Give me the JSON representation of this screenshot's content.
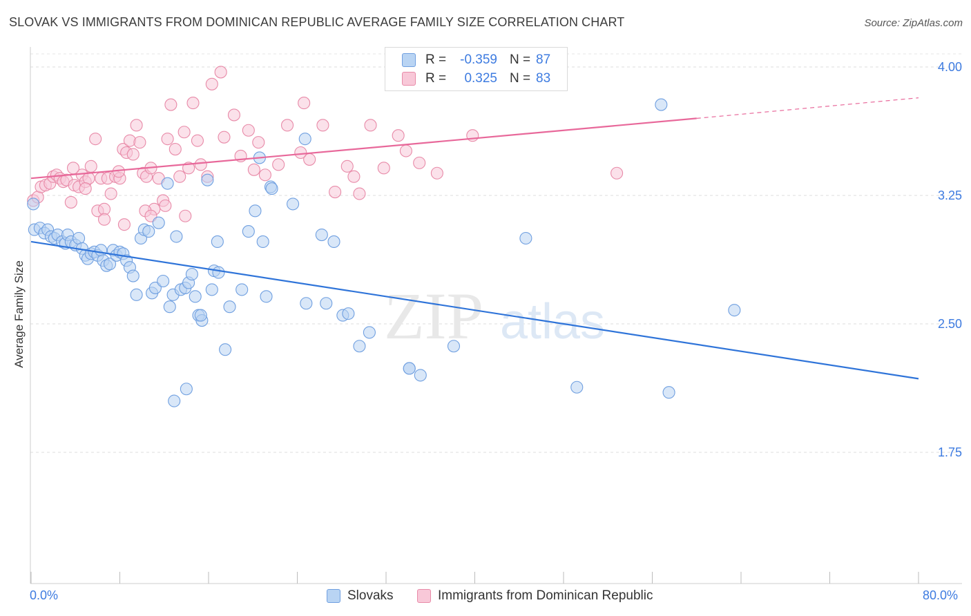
{
  "title": "SLOVAK VS IMMIGRANTS FROM DOMINICAN REPUBLIC AVERAGE FAMILY SIZE CORRELATION CHART",
  "source": "Source: ZipAtlas.com",
  "watermark": {
    "zip": "ZIP",
    "atlas": "atlas"
  },
  "legend": {
    "r_label": "R =",
    "n_label": "N =",
    "series": [
      {
        "r": "-0.359",
        "n": "87"
      },
      {
        "r": "0.325",
        "n": "83"
      }
    ]
  },
  "bottom_legend": {
    "series_a": "Slovaks",
    "series_b": "Immigrants from Dominican Republic"
  },
  "x_labels": {
    "min": "0.0%",
    "max": "80.0%"
  },
  "colors": {
    "blue": "#6f9fe0",
    "blue_fill": "#b9d4f3",
    "pink": "#e88aa8",
    "pink_fill": "#f8c8d8",
    "blue_line": "#2f74d9",
    "pink_line": "#e8689a",
    "tick_text": "#3d7be0"
  },
  "chart_data": {
    "type": "scatter",
    "title": "SLOVAK VS IMMIGRANTS FROM DOMINICAN REPUBLIC AVERAGE FAMILY SIZE CORRELATION CHART",
    "xlabel": "",
    "ylabel": "Average Family Size",
    "xlim": [
      0,
      80
    ],
    "ylim": [
      1.0,
      4.15
    ],
    "y_ticks": [
      1.75,
      2.5,
      3.25,
      4.0
    ],
    "y_tick_labels": [
      "1.75",
      "2.50",
      "3.25",
      "4.00"
    ],
    "x_ticks": [
      0,
      8,
      16,
      24,
      32,
      40,
      48,
      56,
      64,
      72,
      80
    ],
    "series": [
      {
        "name": "Slovaks",
        "r": -0.359,
        "n": 87,
        "trend": {
          "x0": 0,
          "y0": 2.98,
          "x1": 80,
          "y1": 2.18
        },
        "points": [
          [
            0.2,
            3.2
          ],
          [
            0.3,
            3.05
          ],
          [
            0.8,
            3.06
          ],
          [
            1.2,
            3.03
          ],
          [
            1.5,
            3.05
          ],
          [
            1.8,
            3.01
          ],
          [
            2.1,
            3.0
          ],
          [
            2.4,
            3.02
          ],
          [
            2.8,
            2.98
          ],
          [
            3.1,
            2.97
          ],
          [
            3.3,
            3.02
          ],
          [
            3.6,
            2.98
          ],
          [
            4.0,
            2.96
          ],
          [
            4.3,
            3.0
          ],
          [
            4.6,
            2.94
          ],
          [
            4.9,
            2.9
          ],
          [
            5.1,
            2.88
          ],
          [
            5.4,
            2.91
          ],
          [
            5.7,
            2.92
          ],
          [
            6.0,
            2.9
          ],
          [
            6.3,
            2.93
          ],
          [
            6.5,
            2.87
          ],
          [
            6.8,
            2.84
          ],
          [
            7.1,
            2.85
          ],
          [
            7.4,
            2.93
          ],
          [
            7.7,
            2.9
          ],
          [
            8.0,
            2.92
          ],
          [
            8.3,
            2.91
          ],
          [
            8.6,
            2.87
          ],
          [
            8.9,
            2.83
          ],
          [
            9.2,
            2.78
          ],
          [
            9.5,
            2.67
          ],
          [
            9.9,
            3.0
          ],
          [
            10.2,
            3.05
          ],
          [
            10.6,
            3.04
          ],
          [
            10.9,
            2.68
          ],
          [
            11.2,
            2.71
          ],
          [
            11.5,
            3.09
          ],
          [
            11.9,
            2.75
          ],
          [
            12.3,
            3.32
          ],
          [
            12.5,
            2.6
          ],
          [
            12.8,
            2.67
          ],
          [
            13.1,
            3.01
          ],
          [
            13.5,
            2.7
          ],
          [
            13.9,
            2.71
          ],
          [
            14.2,
            2.74
          ],
          [
            14.5,
            2.79
          ],
          [
            14.8,
            2.66
          ],
          [
            15.1,
            2.55
          ],
          [
            15.4,
            2.52
          ],
          [
            15.9,
            3.34
          ],
          [
            16.3,
            2.7
          ],
          [
            16.5,
            2.81
          ],
          [
            16.8,
            2.98
          ],
          [
            17.9,
            2.6
          ],
          [
            19.0,
            2.7
          ],
          [
            19.6,
            3.04
          ],
          [
            20.2,
            3.16
          ],
          [
            20.6,
            3.47
          ],
          [
            20.9,
            2.98
          ],
          [
            21.2,
            2.66
          ],
          [
            21.6,
            3.3
          ],
          [
            21.7,
            3.29
          ],
          [
            23.6,
            3.2
          ],
          [
            24.7,
            3.58
          ],
          [
            26.2,
            3.02
          ],
          [
            27.3,
            2.98
          ],
          [
            28.1,
            2.55
          ],
          [
            29.6,
            2.37
          ],
          [
            30.5,
            2.45
          ],
          [
            34.1,
            2.24
          ],
          [
            34.1,
            2.24
          ],
          [
            35.1,
            2.2
          ],
          [
            26.6,
            2.62
          ],
          [
            16.9,
            2.8
          ],
          [
            15.3,
            2.55
          ],
          [
            24.8,
            2.62
          ],
          [
            17.5,
            2.35
          ],
          [
            12.9,
            2.05
          ],
          [
            14.0,
            2.12
          ],
          [
            28.6,
            2.56
          ],
          [
            38.1,
            2.37
          ],
          [
            44.6,
            3.0
          ],
          [
            56.8,
            3.78
          ],
          [
            49.2,
            2.13
          ],
          [
            57.5,
            2.1
          ],
          [
            63.4,
            2.58
          ]
        ]
      },
      {
        "name": "Immigrants from Dominican Republic",
        "r": 0.325,
        "n": 83,
        "trend": {
          "x0": 0,
          "y0": 3.35,
          "x1": 60,
          "y1": 3.7,
          "dash_to_x": 80,
          "dash_to_y": 3.82
        },
        "points": [
          [
            0.2,
            3.22
          ],
          [
            0.6,
            3.24
          ],
          [
            0.9,
            3.3
          ],
          [
            1.3,
            3.31
          ],
          [
            1.7,
            3.32
          ],
          [
            2.0,
            3.36
          ],
          [
            2.3,
            3.37
          ],
          [
            2.6,
            3.35
          ],
          [
            2.9,
            3.33
          ],
          [
            3.2,
            3.34
          ],
          [
            3.6,
            3.21
          ],
          [
            3.9,
            3.31
          ],
          [
            4.3,
            3.3
          ],
          [
            4.6,
            3.37
          ],
          [
            4.9,
            3.33
          ],
          [
            5.2,
            3.35
          ],
          [
            5.4,
            3.42
          ],
          [
            5.8,
            3.58
          ],
          [
            6.0,
            3.16
          ],
          [
            6.3,
            3.35
          ],
          [
            6.6,
            3.17
          ],
          [
            6.9,
            3.35
          ],
          [
            7.2,
            3.26
          ],
          [
            7.6,
            3.36
          ],
          [
            8.0,
            3.35
          ],
          [
            8.3,
            3.52
          ],
          [
            8.6,
            3.5
          ],
          [
            8.9,
            3.57
          ],
          [
            9.2,
            3.49
          ],
          [
            9.5,
            3.66
          ],
          [
            9.8,
            3.56
          ],
          [
            10.1,
            3.38
          ],
          [
            10.4,
            3.36
          ],
          [
            10.8,
            3.41
          ],
          [
            11.1,
            3.17
          ],
          [
            11.5,
            3.35
          ],
          [
            11.9,
            3.22
          ],
          [
            12.3,
            3.58
          ],
          [
            12.6,
            3.78
          ],
          [
            13.0,
            3.52
          ],
          [
            13.4,
            3.36
          ],
          [
            13.8,
            3.62
          ],
          [
            14.2,
            3.41
          ],
          [
            14.6,
            3.79
          ],
          [
            15.0,
            3.57
          ],
          [
            15.3,
            3.43
          ],
          [
            15.9,
            3.36
          ],
          [
            16.3,
            3.9
          ],
          [
            17.1,
            3.97
          ],
          [
            17.4,
            3.59
          ],
          [
            18.3,
            3.72
          ],
          [
            18.9,
            3.48
          ],
          [
            19.6,
            3.63
          ],
          [
            20.1,
            3.4
          ],
          [
            20.5,
            3.56
          ],
          [
            21.1,
            3.37
          ],
          [
            22.3,
            3.43
          ],
          [
            23.1,
            3.66
          ],
          [
            24.6,
            3.79
          ],
          [
            25.1,
            3.46
          ],
          [
            26.3,
            3.66
          ],
          [
            27.4,
            3.27
          ],
          [
            28.5,
            3.42
          ],
          [
            29.1,
            3.36
          ],
          [
            29.6,
            3.26
          ],
          [
            30.6,
            3.66
          ],
          [
            31.8,
            3.41
          ],
          [
            33.1,
            3.6
          ],
          [
            33.8,
            3.51
          ],
          [
            35.0,
            3.44
          ],
          [
            36.6,
            3.38
          ],
          [
            39.8,
            3.6
          ],
          [
            52.8,
            3.38
          ],
          [
            10.3,
            3.16
          ],
          [
            8.4,
            3.08
          ],
          [
            6.6,
            3.11
          ],
          [
            13.9,
            3.13
          ],
          [
            12.1,
            3.19
          ],
          [
            10.8,
            3.13
          ],
          [
            4.9,
            3.29
          ],
          [
            3.8,
            3.41
          ],
          [
            7.9,
            3.39
          ],
          [
            24.3,
            3.5
          ]
        ]
      }
    ]
  }
}
